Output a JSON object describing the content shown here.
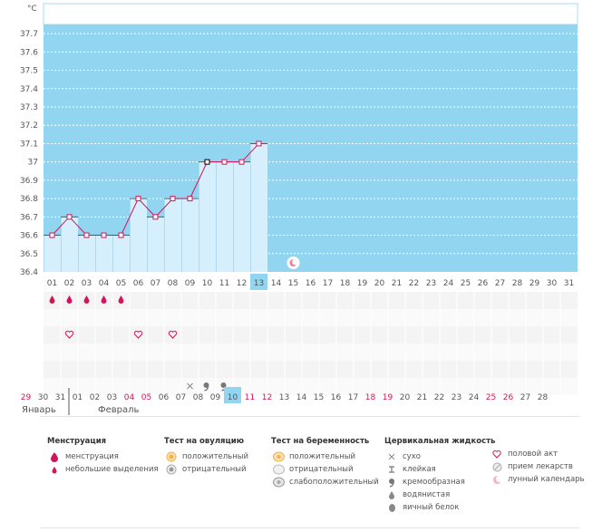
{
  "chart_data": {
    "type": "line",
    "ylabel": "°C",
    "ylim": [
      36.4,
      37.8
    ],
    "yticks": [
      "36.4",
      "36.5",
      "36.6",
      "36.7",
      "36.8",
      "36.9",
      "37",
      "37.1",
      "37.2",
      "37.3",
      "37.4",
      "37.5",
      "37.6",
      "37.7"
    ],
    "days": [
      "01",
      "02",
      "03",
      "04",
      "05",
      "06",
      "07",
      "08",
      "09",
      "10",
      "11",
      "12",
      "13",
      "14",
      "15",
      "16",
      "17",
      "18",
      "19",
      "20",
      "21",
      "22",
      "23",
      "24",
      "25",
      "26",
      "27",
      "28",
      "29",
      "30",
      "31"
    ],
    "today_index": 12,
    "temperatures": [
      36.6,
      36.7,
      36.6,
      36.6,
      36.6,
      36.8,
      36.7,
      36.8,
      36.8,
      37.0,
      37.0,
      37.0,
      37.1
    ],
    "coverline_index": 9,
    "moon_day_index": 14,
    "colors": {
      "background": "#91d5f1",
      "bar": "#d6effc",
      "line": "#d4145a",
      "today": "#91d5f1",
      "red_day": "#d4145a"
    }
  },
  "symbols": {
    "menstruation_days": [
      0,
      1,
      2,
      3,
      4
    ],
    "intercourse_days": [
      1,
      5,
      7
    ],
    "fluid": [
      {
        "day": 8,
        "icon": "dry-icon"
      },
      {
        "day": 9,
        "icon": "creamy-icon"
      },
      {
        "day": 10,
        "icon": "creamy-icon"
      }
    ]
  },
  "calendar_row": {
    "dates": [
      "29",
      "30",
      "31",
      "01",
      "02",
      "03",
      "04",
      "05",
      "06",
      "07",
      "08",
      "09",
      "10",
      "11",
      "12",
      "13",
      "14",
      "15",
      "16",
      "17",
      "18",
      "19",
      "20",
      "21",
      "22",
      "23",
      "24",
      "25",
      "26",
      "27",
      "28"
    ],
    "red_indices": [
      0,
      6,
      7,
      13,
      14,
      20,
      21,
      27,
      28
    ],
    "today_index": 12,
    "month_break_index": 3,
    "month_prev": "Январь",
    "month_next": "Февраль"
  },
  "legend": {
    "menstruation": {
      "title": "Менструация",
      "items": [
        "менструация",
        "небольшие выделения"
      ]
    },
    "ovulation": {
      "title": "Тест на овуляцию",
      "items": [
        "положительный",
        "отрицательный"
      ]
    },
    "pregnancy": {
      "title": "Тест на беременность",
      "items": [
        "положительный",
        "отрицательный",
        "слабоположительный"
      ]
    },
    "fluid": {
      "title": "Цервикальная жидкость",
      "items": [
        "сухо",
        "клейкая",
        "кремообразная",
        "водянистая",
        "яичный белок"
      ]
    },
    "other": {
      "items": [
        "половой акт",
        "прием лекарств",
        "лунный календарь"
      ]
    }
  }
}
